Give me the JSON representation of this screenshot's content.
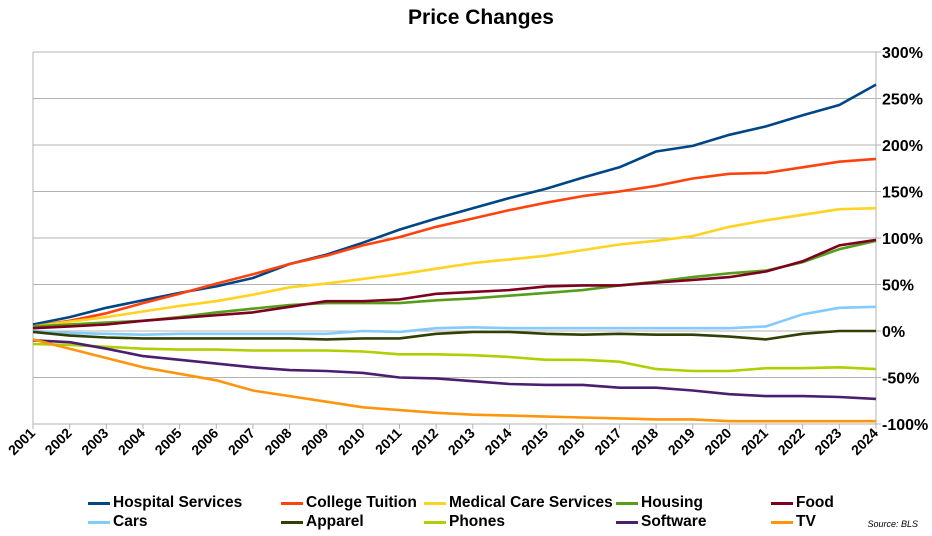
{
  "chart_data": {
    "type": "line",
    "title": "Price Changes",
    "xlabel": "",
    "ylabel": "",
    "x": [
      "2001",
      "2002",
      "2003",
      "2004",
      "2005",
      "2006",
      "2007",
      "2008",
      "2009",
      "2010",
      "2011",
      "2012",
      "2013",
      "2014",
      "2015",
      "2016",
      "2017",
      "2018",
      "2019",
      "2020",
      "2021",
      "2022",
      "2023",
      "2024"
    ],
    "ylim": [
      -100,
      300
    ],
    "y_ticks": [
      300,
      250,
      200,
      150,
      100,
      50,
      0,
      -50,
      -100
    ],
    "y_tick_labels": [
      "300%",
      "250%",
      "200%",
      "150%",
      "100%",
      "50%",
      "0%",
      "-50%",
      "-100%"
    ],
    "y_axis_side": "right",
    "grid": true,
    "legend_position": "bottom",
    "series": [
      {
        "name": "Hospital Services",
        "color": "#004586",
        "values": [
          7,
          15,
          25,
          33,
          41,
          48,
          57,
          72,
          82,
          95,
          109,
          121,
          132,
          143,
          153,
          165,
          176,
          193,
          199,
          211,
          220,
          232,
          243,
          265
        ]
      },
      {
        "name": "College Tuition",
        "color": "#ff420e",
        "values": [
          5,
          11,
          19,
          30,
          40,
          51,
          61,
          72,
          81,
          92,
          101,
          112,
          121,
          130,
          138,
          145,
          150,
          156,
          164,
          169,
          170,
          176,
          182,
          185
        ]
      },
      {
        "name": "Medical Care Services",
        "color": "#ffd320",
        "values": [
          5,
          10,
          15,
          21,
          27,
          32,
          39,
          47,
          51,
          56,
          61,
          67,
          73,
          77,
          81,
          87,
          93,
          97,
          102,
          112,
          119,
          125,
          131,
          132
        ]
      },
      {
        "name": "Housing",
        "color": "#579d1c",
        "values": [
          5,
          7,
          9,
          11,
          15,
          20,
          24,
          28,
          30,
          30,
          30,
          33,
          35,
          38,
          41,
          44,
          49,
          53,
          58,
          62,
          65,
          74,
          88,
          97
        ]
      },
      {
        "name": "Food",
        "color": "#7e0021",
        "values": [
          3,
          5,
          7,
          11,
          14,
          17,
          20,
          26,
          32,
          32,
          34,
          40,
          42,
          44,
          48,
          49,
          49,
          52,
          55,
          58,
          64,
          75,
          92,
          98
        ]
      },
      {
        "name": "Cars",
        "color": "#83caff",
        "values": [
          0,
          -2,
          -3,
          -4,
          -3,
          -3,
          -3,
          -3,
          -3,
          0,
          -1,
          3,
          4,
          3,
          3,
          3,
          3,
          3,
          3,
          3,
          5,
          18,
          25,
          26
        ]
      },
      {
        "name": "Apparel",
        "color": "#314004",
        "values": [
          -1,
          -5,
          -7,
          -8,
          -8,
          -8,
          -8,
          -8,
          -9,
          -8,
          -8,
          -3,
          -1,
          -1,
          -3,
          -4,
          -3,
          -4,
          -4,
          -6,
          -9,
          -3,
          0,
          0
        ]
      },
      {
        "name": "Phones",
        "color": "#aecf00",
        "values": [
          -14,
          -15,
          -17,
          -19,
          -20,
          -20,
          -21,
          -21,
          -21,
          -22,
          -25,
          -25,
          -26,
          -28,
          -31,
          -31,
          -33,
          -41,
          -43,
          -43,
          -40,
          -40,
          -39,
          -41
        ]
      },
      {
        "name": "Software",
        "color": "#4b1f6f",
        "values": [
          -10,
          -12,
          -19,
          -27,
          -31,
          -35,
          -39,
          -42,
          -43,
          -45,
          -50,
          -51,
          -54,
          -57,
          -58,
          -58,
          -61,
          -61,
          -64,
          -68,
          -70,
          -70,
          -71,
          -73
        ]
      },
      {
        "name": "TV",
        "color": "#ff950e",
        "values": [
          -9,
          -19,
          -29,
          -39,
          -46,
          -53,
          -64,
          -70,
          -76,
          -82,
          -85,
          -88,
          -90,
          -91,
          -92,
          -93,
          -94,
          -95,
          -95,
          -97,
          -97,
          -97,
          -97,
          -97
        ]
      }
    ],
    "annotations": [
      "Source: BLS"
    ]
  },
  "source_note": "Source: BLS"
}
